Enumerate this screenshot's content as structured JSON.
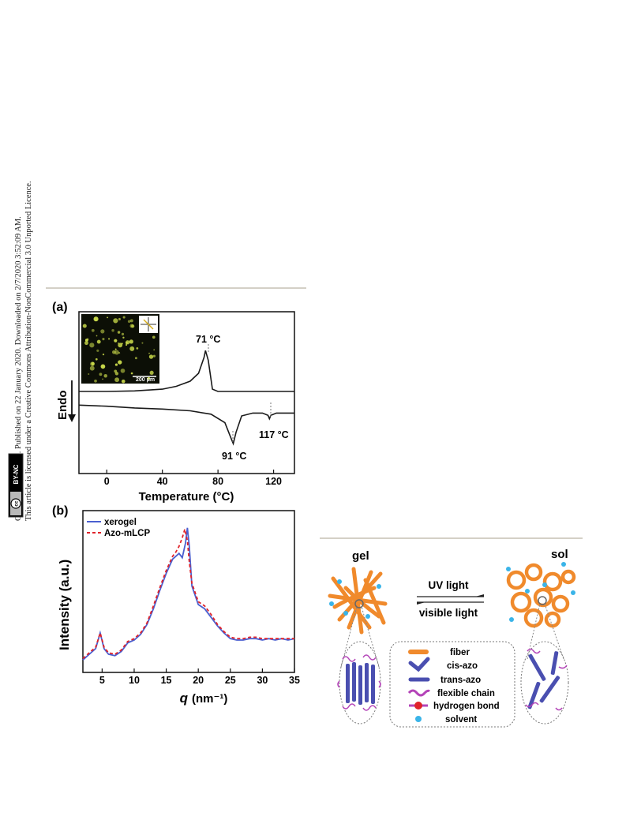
{
  "sidebar": {
    "line1": "Open Access Article. Published on 22 January 2020. Downloaded on 2/7/2020 3:52:09 AM.",
    "line2": "This article is licensed under a Creative Commons Attribution-NonCommercial 3.0 Unported Licence.",
    "badge_cc": "cc",
    "badge_license": "BY-NC"
  },
  "fig_a": {
    "panel_label": "(a)",
    "ylabel": "Endo",
    "xlabel": "Temperature (°C)",
    "inset_scale": "200 μm",
    "peaks": [
      "71 °C",
      "91 °C",
      "117 °C"
    ],
    "colors": {
      "curve": "#1a1a1a",
      "inset_bg": "#0c0f06",
      "inset_dot": "#c8d84a"
    }
  },
  "fig_b": {
    "panel_label": "(b)",
    "ylabel": "Intensity (a.u.)",
    "xlabel_q": "q",
    "xlabel_unit": "(nm⁻¹)",
    "colors": {
      "xerogel": "#4a5fd0",
      "azo": "#e0232a"
    }
  },
  "scheme": {
    "gel": "gel",
    "sol": "sol",
    "uv": "UV light",
    "visible": "visible light",
    "legend": [
      "fiber",
      "cis-azo",
      "trans-azo",
      "flexible chain",
      "hydrogen bond",
      "solvent"
    ],
    "colors": {
      "fiber": "#f08a2c",
      "azo": "#4a4fb0",
      "chain": "#b444b8",
      "hbond": "#e0232a",
      "solvent": "#3ab4e8"
    }
  },
  "chart_data": [
    {
      "type": "line",
      "title": "",
      "xlabel": "Temperature (°C)",
      "ylabel": "Endo",
      "xlim": [
        -20,
        135
      ],
      "x_ticks": [
        0,
        40,
        80,
        120
      ],
      "grid": false,
      "series": [
        {
          "x": [
            -20,
            0,
            20,
            40,
            50,
            60,
            66,
            70,
            71,
            73,
            76,
            80,
            100,
            135
          ],
          "values": [
            0,
            0,
            0.01,
            0.04,
            0.09,
            0.18,
            0.32,
            0.6,
            0.72,
            0.55,
            0.04,
            0,
            0,
            0
          ]
        },
        {
          "x": [
            -20,
            0,
            20,
            40,
            60,
            75,
            85,
            89,
            91,
            93,
            97,
            105,
            112,
            116,
            117,
            118,
            122,
            135
          ],
          "values": [
            -0.24,
            -0.26,
            -0.29,
            -0.31,
            -0.34,
            -0.4,
            -0.55,
            -0.8,
            -0.92,
            -0.72,
            -0.43,
            -0.38,
            -0.38,
            -0.42,
            -0.48,
            -0.42,
            -0.38,
            -0.38
          ]
        }
      ],
      "annotations": [
        "71 °C",
        "91 °C",
        "117 °C"
      ]
    },
    {
      "type": "line",
      "title": "",
      "xlabel": "q (nm⁻¹)",
      "ylabel": "Intensity (a.u.)",
      "xlim": [
        2,
        35
      ],
      "x_ticks": [
        5,
        10,
        15,
        20,
        25,
        30,
        35
      ],
      "grid": false,
      "legend": "top-left",
      "series": [
        {
          "name": "xerogel",
          "x": [
            2,
            3,
            4,
            4.7,
            5.3,
            6,
            7,
            8,
            9,
            10,
            11,
            12,
            13,
            14,
            15,
            16,
            16.5,
            17,
            17.5,
            18,
            18.3,
            18.6,
            19,
            20,
            21,
            22,
            23,
            24,
            25,
            26,
            27,
            28,
            29,
            30,
            31,
            32,
            33,
            34,
            35
          ],
          "values": [
            0.06,
            0.1,
            0.14,
            0.25,
            0.14,
            0.1,
            0.09,
            0.12,
            0.18,
            0.2,
            0.24,
            0.31,
            0.42,
            0.55,
            0.67,
            0.77,
            0.79,
            0.81,
            0.78,
            0.88,
            0.99,
            0.86,
            0.58,
            0.45,
            0.42,
            0.36,
            0.3,
            0.25,
            0.21,
            0.2,
            0.2,
            0.21,
            0.21,
            0.2,
            0.21,
            0.2,
            0.21,
            0.2,
            0.21
          ]
        },
        {
          "name": "Azo-mLCP",
          "x": [
            2,
            3,
            4,
            4.7,
            5.3,
            6,
            7,
            8,
            9,
            10,
            11,
            12,
            13,
            14,
            15,
            16,
            16.5,
            17,
            17.5,
            17.9,
            18.3,
            18.6,
            19,
            20,
            21,
            22,
            23,
            24,
            25,
            26,
            27,
            28,
            29,
            30,
            31,
            32,
            33,
            34,
            35
          ],
          "values": [
            0.07,
            0.11,
            0.15,
            0.25,
            0.15,
            0.11,
            0.1,
            0.13,
            0.19,
            0.21,
            0.25,
            0.32,
            0.44,
            0.57,
            0.69,
            0.79,
            0.82,
            0.86,
            0.92,
            0.98,
            0.9,
            0.75,
            0.6,
            0.47,
            0.44,
            0.38,
            0.31,
            0.26,
            0.22,
            0.21,
            0.21,
            0.22,
            0.22,
            0.21,
            0.21,
            0.21,
            0.21,
            0.21,
            0.21
          ]
        }
      ]
    }
  ]
}
